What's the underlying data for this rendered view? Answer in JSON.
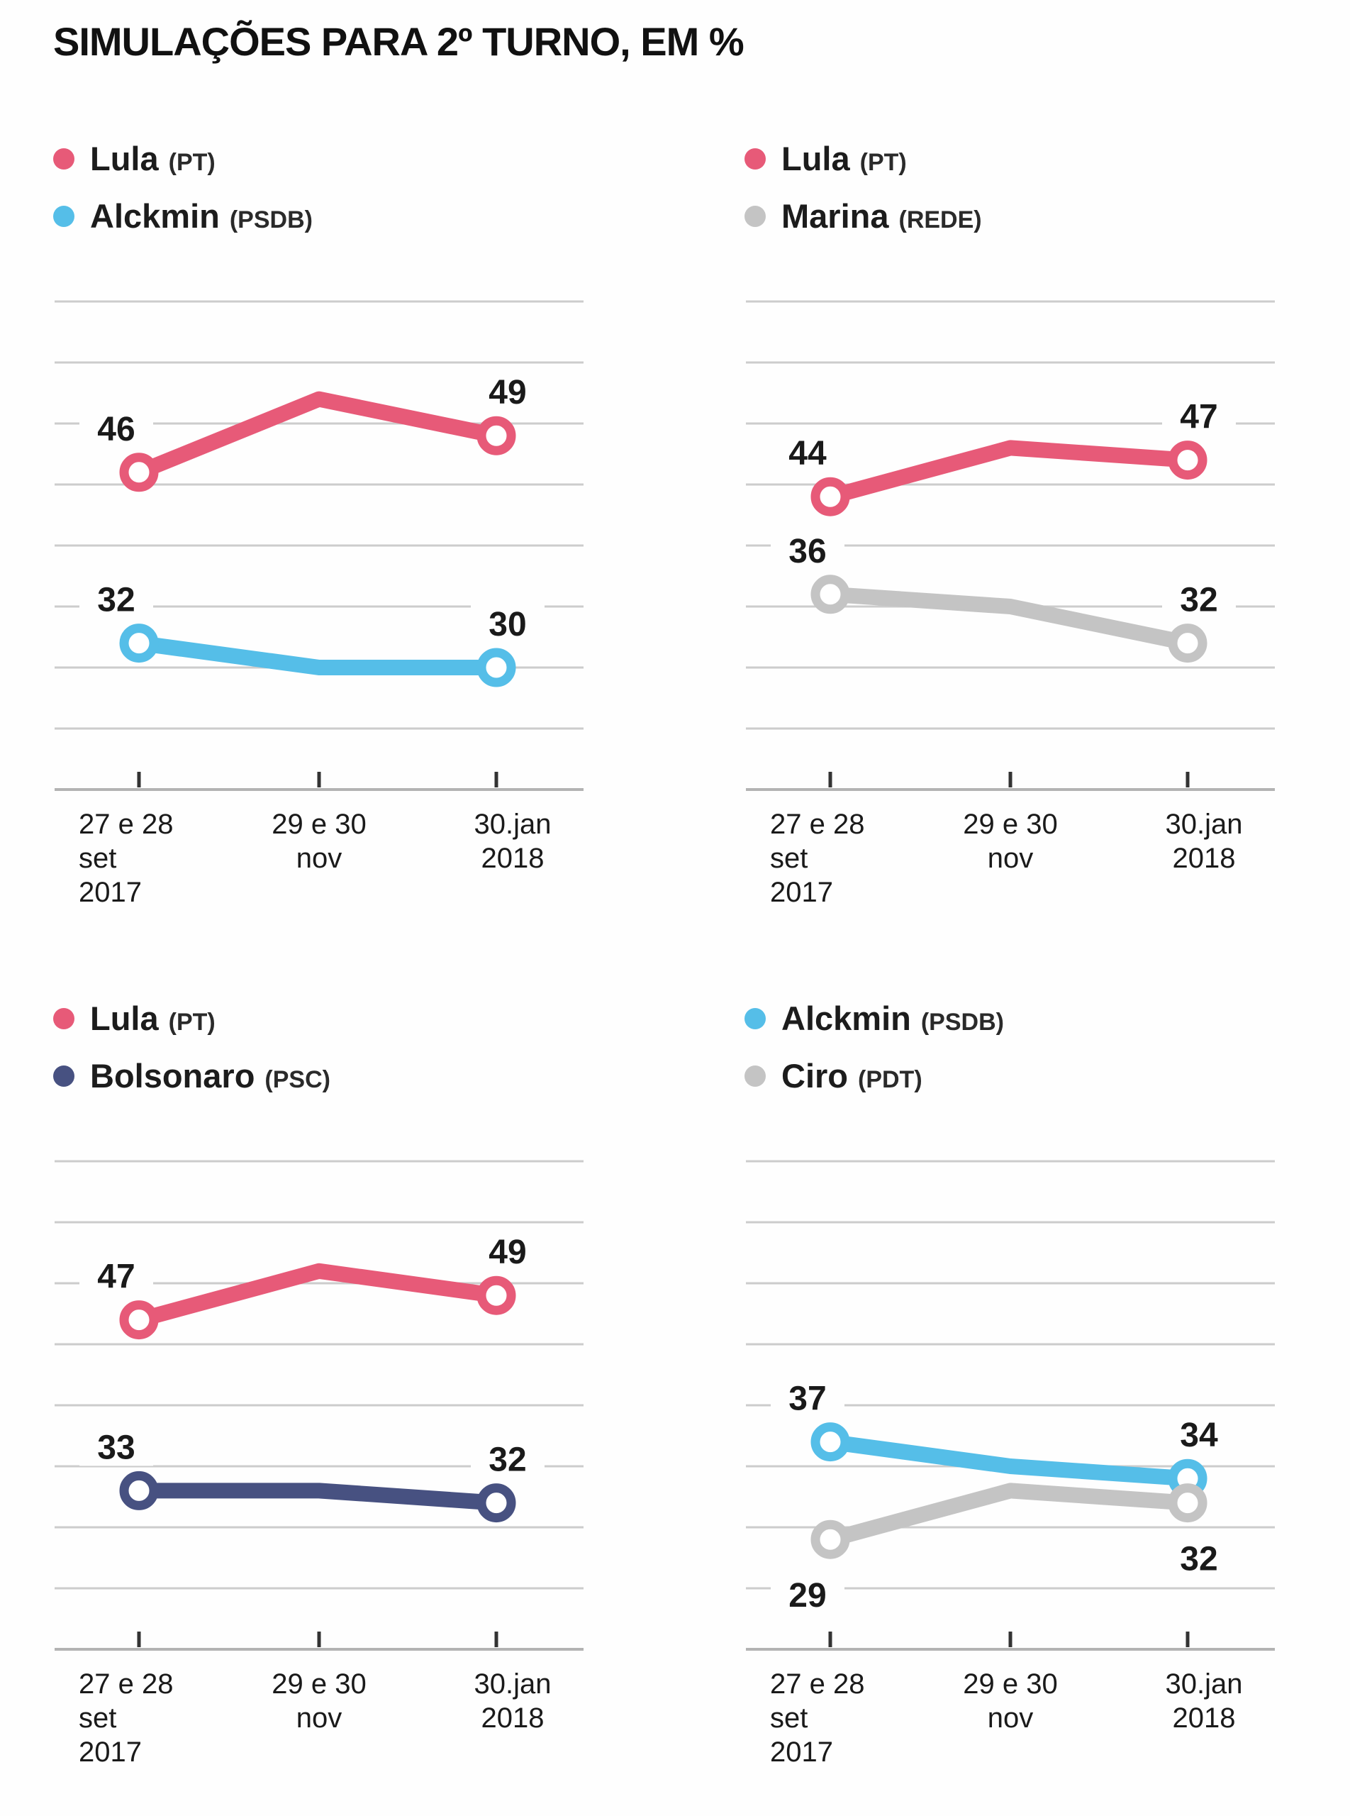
{
  "title": "SIMULAÇÕES PARA 2º TURNO, EM %",
  "x_axis": {
    "tick_groups": [
      {
        "lines": [
          "27 e 28",
          "set",
          "2017"
        ],
        "anchor": "start"
      },
      {
        "lines": [
          "29 e 30",
          "nov"
        ],
        "anchor": "middle"
      },
      {
        "lines": [
          "30.jan",
          "2018"
        ],
        "anchor": "middle"
      }
    ]
  },
  "colors": {
    "lula": "#e75a78",
    "alckmin": "#55bee8",
    "marina": "#c4c4c4",
    "bolsonaro": "#475181",
    "ciro": "#c4c4c4",
    "grid": "#cccccc",
    "axis": "#b3b3b3",
    "tick": "#333333",
    "label_text": "#1a1a1a"
  },
  "chart_data": [
    {
      "id": "lula-vs-alckmin",
      "type": "line",
      "x_categories": [
        "27 e 28 set 2017",
        "29 e 30 nov",
        "30.jan 2018"
      ],
      "ylim": [
        20,
        60
      ],
      "grid_step": 5,
      "grid": true,
      "legend_position": "top-left",
      "series": [
        {
          "name": "Lula",
          "party": "(PT)",
          "color": "#e75a78",
          "values": [
            46,
            52,
            49
          ],
          "point_labels": [
            "46",
            null,
            "49"
          ],
          "label_side": "above"
        },
        {
          "name": "Alckmin",
          "party": "(PSDB)",
          "color": "#55bee8",
          "values": [
            32,
            30,
            30
          ],
          "point_labels": [
            "32",
            null,
            "30"
          ],
          "label_side": "above"
        }
      ]
    },
    {
      "id": "lula-vs-marina",
      "type": "line",
      "x_categories": [
        "27 e 28 set 2017",
        "29 e 30 nov",
        "30.jan 2018"
      ],
      "ylim": [
        20,
        60
      ],
      "grid_step": 5,
      "grid": true,
      "legend_position": "top-left",
      "series": [
        {
          "name": "Lula",
          "party": "(PT)",
          "color": "#e75a78",
          "values": [
            44,
            48,
            47
          ],
          "point_labels": [
            "44",
            null,
            "47"
          ],
          "label_side": "above"
        },
        {
          "name": "Marina",
          "party": "(REDE)",
          "color": "#c4c4c4",
          "values": [
            36,
            35,
            32
          ],
          "point_labels": [
            "36",
            null,
            "32"
          ],
          "label_side": "above"
        }
      ]
    },
    {
      "id": "lula-vs-bolsonaro",
      "type": "line",
      "x_categories": [
        "27 e 28 set 2017",
        "29 e 30 nov",
        "30.jan 2018"
      ],
      "ylim": [
        20,
        60
      ],
      "grid_step": 5,
      "grid": true,
      "legend_position": "top-left",
      "series": [
        {
          "name": "Lula",
          "party": "(PT)",
          "color": "#e75a78",
          "values": [
            47,
            51,
            49
          ],
          "point_labels": [
            "47",
            null,
            "49"
          ],
          "label_side": "above"
        },
        {
          "name": "Bolsonaro",
          "party": "(PSC)",
          "color": "#475181",
          "values": [
            33,
            33,
            32
          ],
          "point_labels": [
            "33",
            null,
            "32"
          ],
          "label_side": "above"
        }
      ]
    },
    {
      "id": "alckmin-vs-ciro",
      "type": "line",
      "x_categories": [
        "27 e 28 set 2017",
        "29 e 30 nov",
        "30.jan 2018"
      ],
      "ylim": [
        20,
        60
      ],
      "grid_step": 5,
      "grid": true,
      "legend_position": "top-left",
      "series": [
        {
          "name": "Alckmin",
          "party": "(PSDB)",
          "color": "#55bee8",
          "values": [
            37,
            35,
            34
          ],
          "point_labels": [
            "37",
            null,
            "34"
          ],
          "label_side": "above"
        },
        {
          "name": "Ciro",
          "party": "(PDT)",
          "color": "#c4c4c4",
          "values": [
            29,
            33,
            32
          ],
          "point_labels": [
            "29",
            null,
            "32"
          ],
          "label_side": "below"
        }
      ]
    }
  ]
}
